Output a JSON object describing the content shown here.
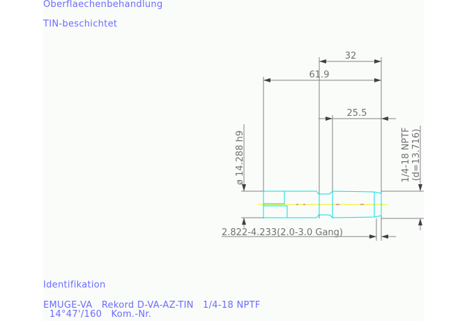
{
  "header": {
    "surface_label": "Oberflaechenbehandlung",
    "surface_value": "TIN-beschichtet"
  },
  "drawing": {
    "dim_32": "32",
    "dim_61_9": "61.9",
    "dim_25_5": "25.5",
    "dim_diameter": "ø 14.288 h9",
    "dim_thread": "1/4-18 NPTF",
    "dim_thread_d": "(d=13.716)",
    "dim_chamfer": "2.822-4.233(2.0-3.0 Gang)",
    "colors": {
      "dimension": "#808080",
      "part": "#00e0e0",
      "centerline": "#f0f000",
      "text": "#6b6bff"
    }
  },
  "footer": {
    "ident_label": "Identifikation",
    "ident_line1": "EMUGE-VA   Rekord D-VA-AZ-TIN   1/4-18 NPTF",
    "ident_line2": "  14°47'/160   Kom.-Nr."
  }
}
